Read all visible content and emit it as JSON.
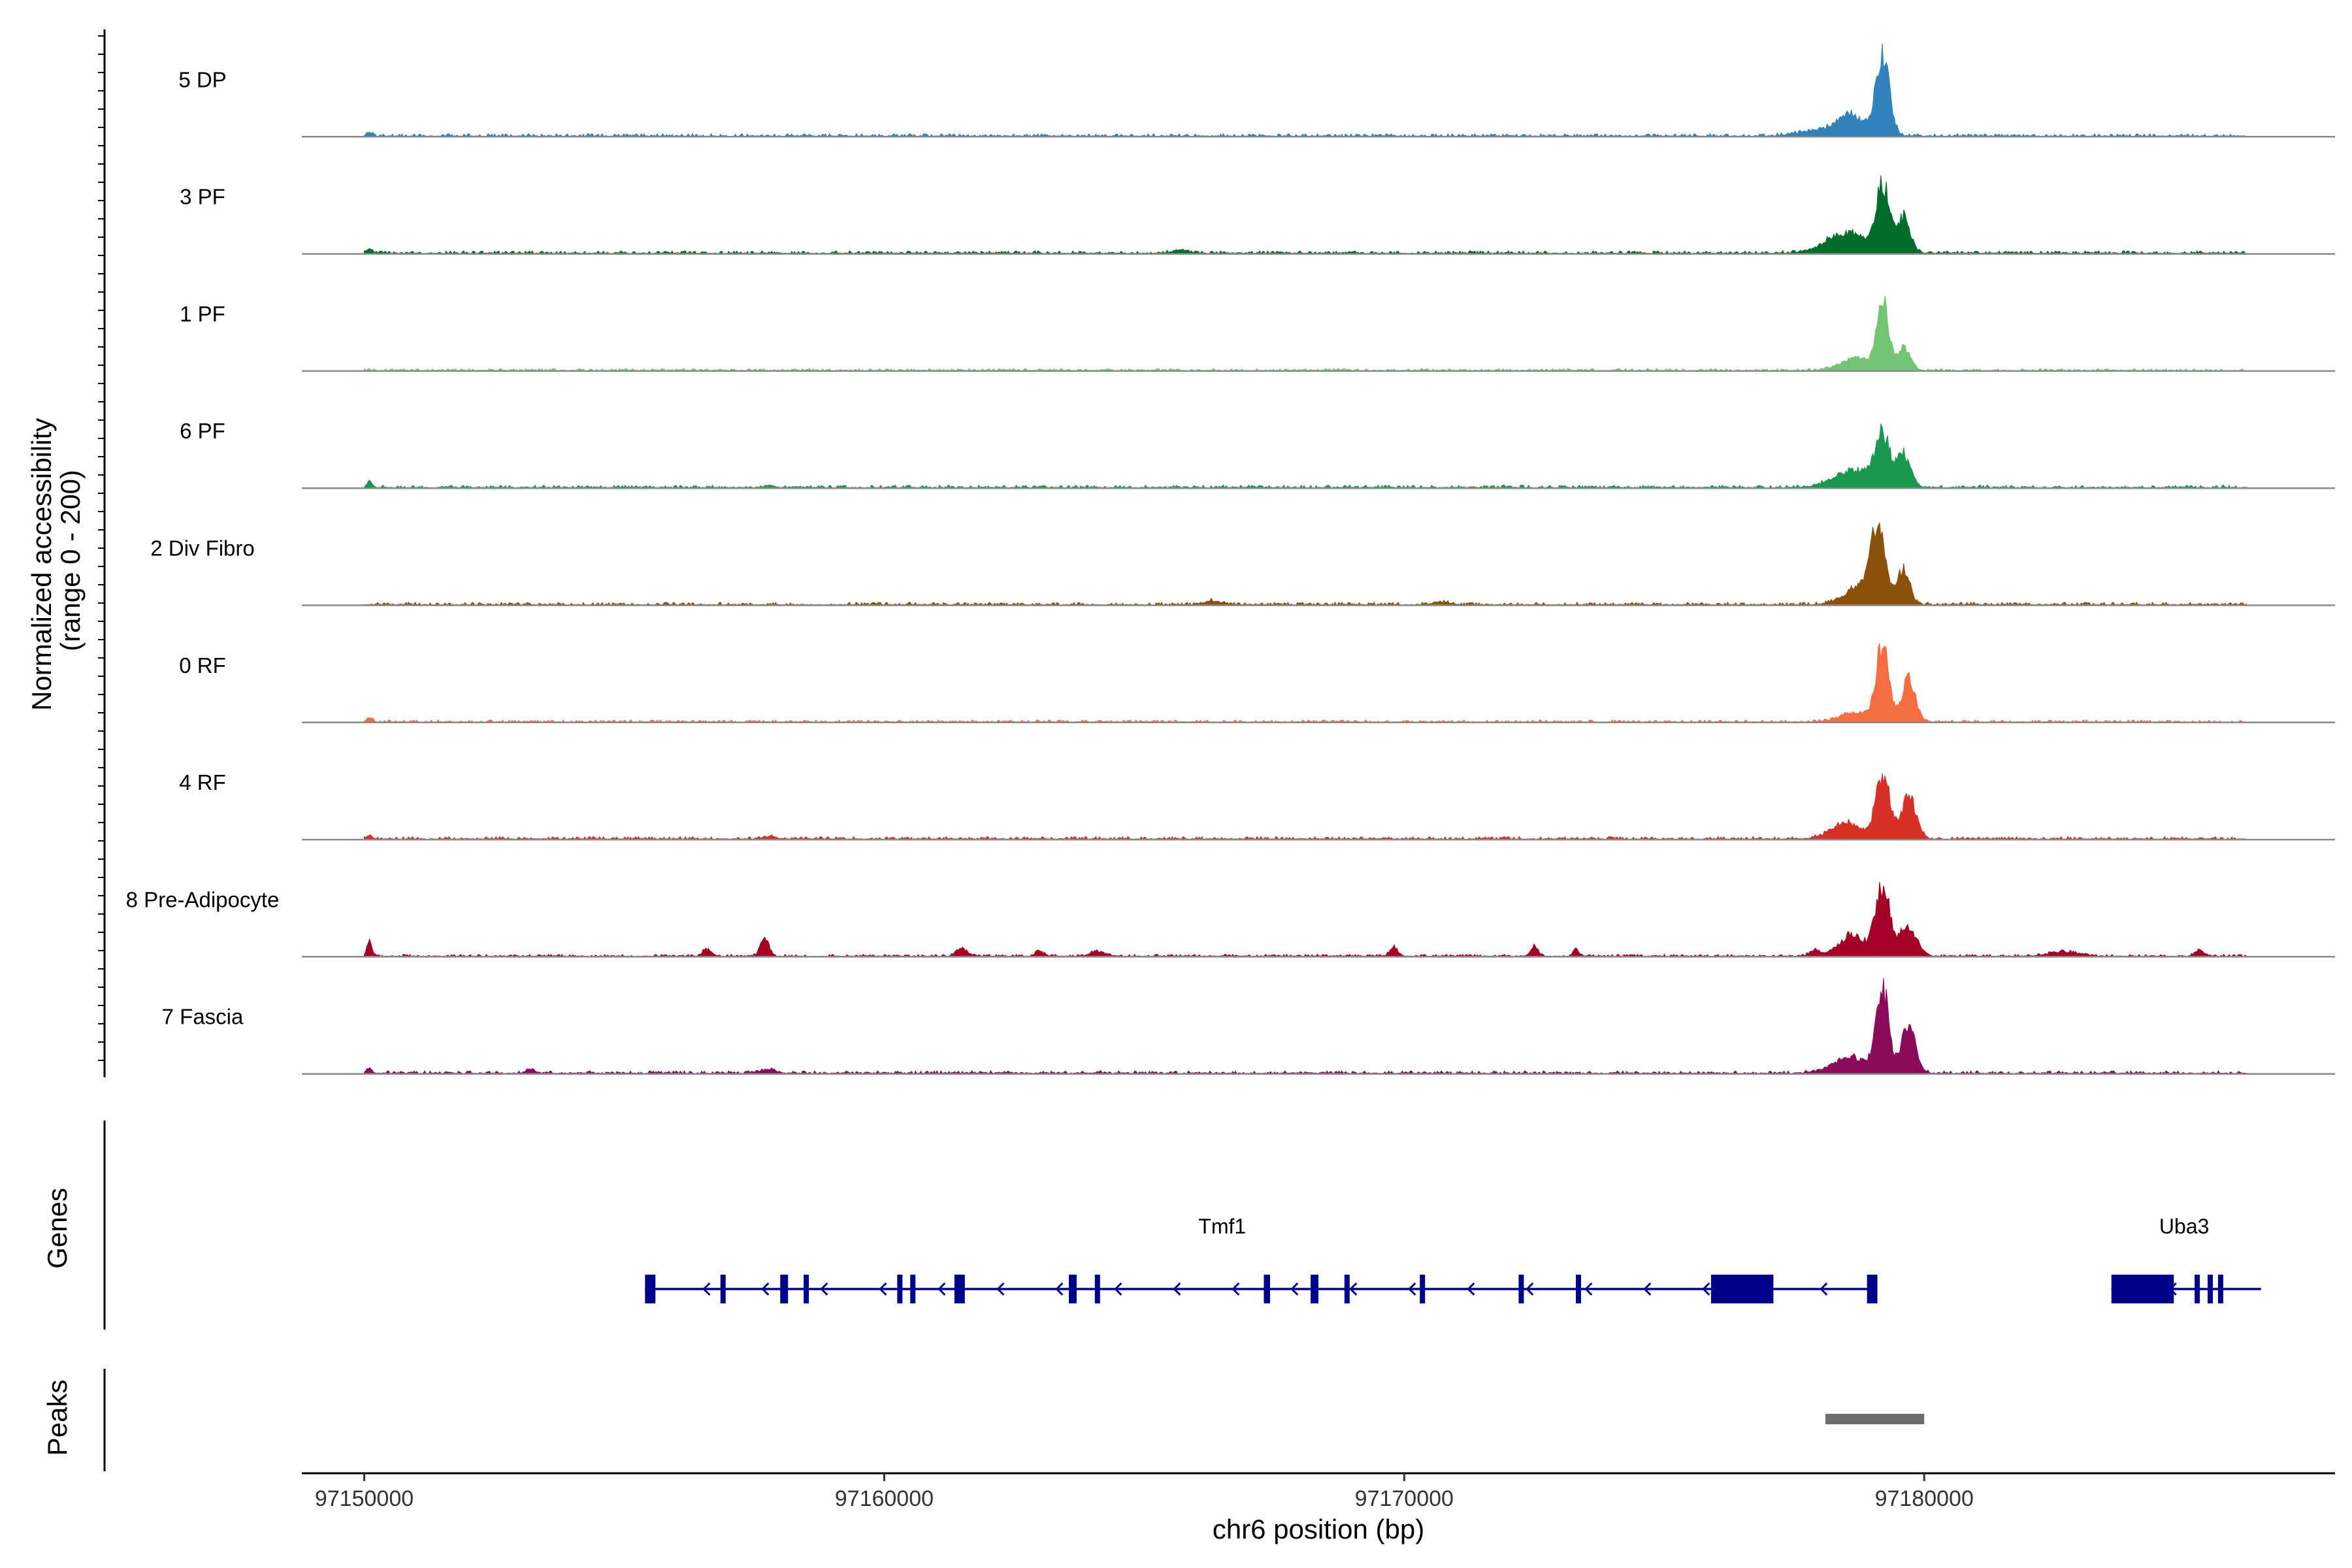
{
  "chart_data": {
    "type": "area",
    "chromosome": "chr6",
    "xlabel": "chr6 position (bp)",
    "ylabel_line1": "Normalized accessibility",
    "ylabel_line2": "(range 0 - 200)",
    "xlim": [
      97148800,
      97187900
    ],
    "x_ticks": [
      97150000,
      97160000,
      97170000,
      97180000
    ],
    "x_tick_labels": [
      "97150000",
      "97160000",
      "97170000",
      "97180000"
    ],
    "ylim": [
      0,
      200
    ],
    "grid": false,
    "series": [
      {
        "name": "5 DP",
        "color": "#3182bd",
        "baseline": 5,
        "peaks": [
          [
            97179200,
            160,
            130
          ],
          [
            97178600,
            40,
            240
          ],
          [
            97178000,
            12,
            400
          ],
          [
            97150100,
            6,
            60
          ]
        ]
      },
      {
        "name": "3 PF",
        "color": "#006d2c",
        "baseline": 5,
        "peaks": [
          [
            97179200,
            135,
            120
          ],
          [
            97179600,
            70,
            130
          ],
          [
            97178500,
            40,
            380
          ],
          [
            97150100,
            8,
            60
          ],
          [
            97165700,
            6,
            150
          ]
        ]
      },
      {
        "name": "1 PF",
        "color": "#74c476",
        "baseline": 4,
        "peaks": [
          [
            97179200,
            130,
            110
          ],
          [
            97179600,
            45,
            130
          ],
          [
            97178700,
            25,
            300
          ]
        ]
      },
      {
        "name": "6 PF",
        "color": "#1a9850",
        "baseline": 5,
        "peaks": [
          [
            97179200,
            95,
            130
          ],
          [
            97179600,
            65,
            130
          ],
          [
            97178700,
            35,
            400
          ],
          [
            97150100,
            12,
            50
          ],
          [
            97157800,
            5,
            80
          ]
        ]
      },
      {
        "name": "2 Div Fibro",
        "color": "#8c510a",
        "baseline": 5,
        "peaks": [
          [
            97179100,
            140,
            140
          ],
          [
            97179600,
            70,
            120
          ],
          [
            97178800,
            35,
            320
          ],
          [
            97166300,
            8,
            150
          ],
          [
            97170700,
            5,
            150
          ]
        ]
      },
      {
        "name": "0 RF",
        "color": "#f46d43",
        "baseline": 4,
        "peaks": [
          [
            97179200,
            150,
            120
          ],
          [
            97179700,
            85,
            130
          ],
          [
            97178700,
            20,
            300
          ],
          [
            97150100,
            8,
            50
          ]
        ]
      },
      {
        "name": "4 RF",
        "color": "#d73027",
        "baseline": 5,
        "peaks": [
          [
            97179200,
            135,
            130
          ],
          [
            97179700,
            85,
            140
          ],
          [
            97178500,
            30,
            300
          ],
          [
            97150100,
            6,
            60
          ],
          [
            97157800,
            5,
            120
          ]
        ]
      },
      {
        "name": "8 Pre-Adipocyte",
        "color": "#a50026",
        "baseline": 4,
        "peaks": [
          [
            97179200,
            140,
            140
          ],
          [
            97179700,
            60,
            160
          ],
          [
            97178600,
            40,
            250
          ],
          [
            97150100,
            28,
            50
          ],
          [
            97157700,
            35,
            80
          ],
          [
            97156600,
            15,
            80
          ],
          [
            97161500,
            16,
            100
          ],
          [
            97163000,
            10,
            80
          ],
          [
            97164100,
            10,
            140
          ],
          [
            97169800,
            17,
            80
          ],
          [
            97172500,
            20,
            70
          ],
          [
            97173300,
            14,
            60
          ],
          [
            97177900,
            12,
            100
          ],
          [
            97185300,
            12,
            80
          ],
          [
            97182700,
            8,
            300
          ]
        ]
      },
      {
        "name": "7 Fascia",
        "color": "#8c0a5a",
        "baseline": 5,
        "peaks": [
          [
            97179200,
            160,
            120
          ],
          [
            97179700,
            100,
            130
          ],
          [
            97178600,
            30,
            350
          ],
          [
            97157800,
            8,
            120
          ],
          [
            97150100,
            8,
            50
          ],
          [
            97153200,
            6,
            80
          ]
        ]
      }
    ],
    "genes_track_title": "Genes",
    "genes": [
      {
        "name": "Tmf1",
        "strand": "-",
        "start": 97155400,
        "end": 97179100,
        "thick_start": 97175900,
        "thick_end": 97177100,
        "exons": [
          [
            97155400,
            97155600
          ],
          [
            97156850,
            97156950
          ],
          [
            97158000,
            97158150
          ],
          [
            97158450,
            97158550
          ],
          [
            97160250,
            97160350
          ],
          [
            97160500,
            97160580
          ],
          [
            97161350,
            97161550
          ],
          [
            97163550,
            97163700
          ],
          [
            97164050,
            97164120
          ],
          [
            97167300,
            97167420
          ],
          [
            97168200,
            97168350
          ],
          [
            97168850,
            97168950
          ],
          [
            97170300,
            97170380
          ],
          [
            97172200,
            97172300
          ],
          [
            97173300,
            97173380
          ],
          [
            97175900,
            97177100
          ],
          [
            97178900,
            97179100
          ]
        ],
        "label_x": 97166500
      },
      {
        "name": "Uba3",
        "strand": "-",
        "start": 97183600,
        "end": 97186100,
        "exons": [
          [
            97183600,
            97184800
          ],
          [
            97185200,
            97185280
          ],
          [
            97185450,
            97185530
          ],
          [
            97185650,
            97185730
          ]
        ],
        "label_x": 97185000
      }
    ],
    "gene_color": "#00008b",
    "peaks_track_title": "Peaks",
    "peaks_track": [
      [
        97178100,
        97180000
      ]
    ],
    "peak_color": "#6e6e6e"
  }
}
